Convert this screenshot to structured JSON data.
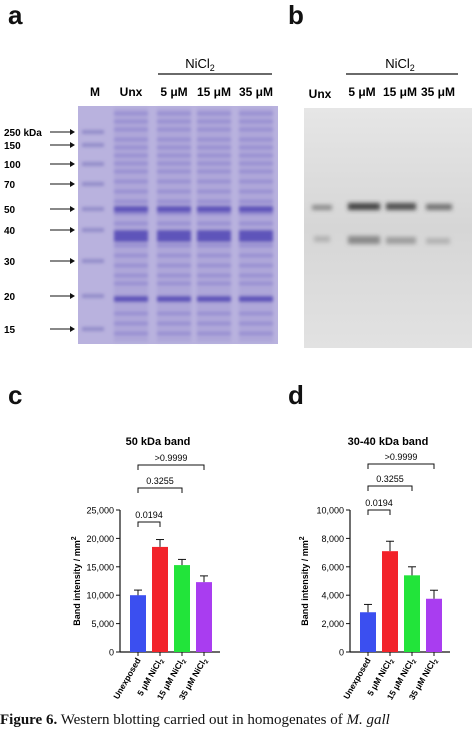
{
  "panels": {
    "a": {
      "letter": "a",
      "treatment": "NiCl",
      "treatment_sub": "2",
      "lanes": [
        "M",
        "Unx",
        "5 μM",
        "15 μM",
        "35 μM"
      ],
      "markers": [
        "250 kDa",
        "150",
        "100",
        "70",
        "50",
        "40",
        "30",
        "20",
        "15"
      ],
      "gel_color": "#b9b2de"
    },
    "b": {
      "letter": "b",
      "treatment": "NiCl",
      "treatment_sub": "2",
      "lanes": [
        "Unx",
        "5 μM",
        "15 μM",
        "35 μM"
      ],
      "blot_color": "#dcdcdc"
    }
  },
  "chart_data": [
    {
      "type": "bar",
      "panel": "c",
      "title": "50 kDa band",
      "ylabel": "Band intensity / mm",
      "ylabel_sup": "2",
      "ylim": [
        0,
        25000
      ],
      "yticks": [
        "0",
        "5,000",
        "10,000",
        "15,000",
        "20,000",
        "25,000"
      ],
      "categories": [
        "Unexposed",
        "5 μM NiCl",
        "15 μM NiCl",
        "35 μM NiCl"
      ],
      "category_sub": [
        "",
        "2",
        "2",
        "2"
      ],
      "values": [
        10000,
        18500,
        15300,
        12300
      ],
      "errors": [
        900,
        1300,
        1000,
        1100
      ],
      "colors": [
        "#3b4ff0",
        "#f2232a",
        "#22e43a",
        "#a93df0"
      ],
      "comparisons": [
        {
          "label": "0.0194",
          "from": 0,
          "to": 1
        },
        {
          "label": "0.3255",
          "from": 0,
          "to": 2
        },
        {
          "label": ">0.9999",
          "from": 0,
          "to": 3
        }
      ]
    },
    {
      "type": "bar",
      "panel": "d",
      "title": "30-40 kDa band",
      "ylabel": "Band intensity / mm",
      "ylabel_sup": "2",
      "ylim": [
        0,
        10000
      ],
      "yticks": [
        "0",
        "2,000",
        "4,000",
        "6,000",
        "8,000",
        "10,000"
      ],
      "categories": [
        "Unexposed",
        "5 μM NiCl",
        "15 μM NiCl",
        "35 μM NiCl"
      ],
      "category_sub": [
        "",
        "2",
        "2",
        "2"
      ],
      "values": [
        2800,
        7100,
        5400,
        3750
      ],
      "errors": [
        550,
        700,
        600,
        600
      ],
      "colors": [
        "#3b4ff0",
        "#f2232a",
        "#22e43a",
        "#a93df0"
      ],
      "comparisons": [
        {
          "label": "0.0194",
          "from": 0,
          "to": 1
        },
        {
          "label": "0.3255",
          "from": 0,
          "to": 2
        },
        {
          "label": ">0.9999",
          "from": 0,
          "to": 3
        }
      ]
    }
  ],
  "caption": {
    "bold": "Figure 6.",
    "text": " Western blotting carried out in homogenates of ",
    "italic": "M. gall"
  }
}
